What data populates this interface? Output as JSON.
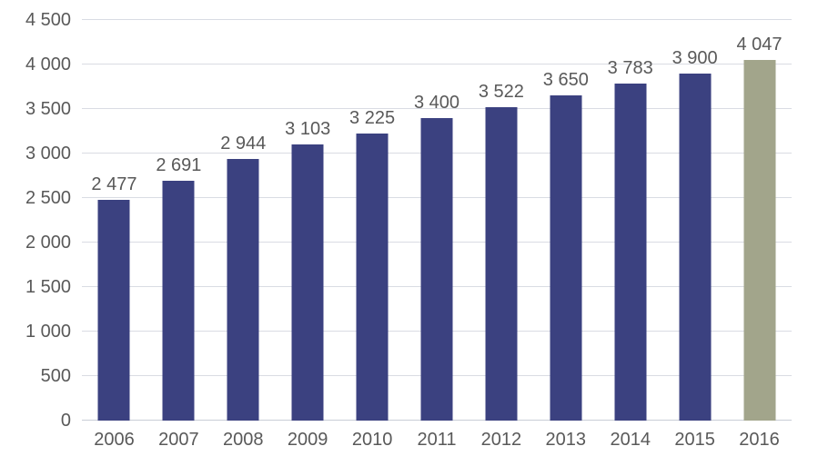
{
  "chart_data": {
    "type": "bar",
    "title": "",
    "xlabel": "",
    "ylabel": "",
    "categories": [
      "2006",
      "2007",
      "2008",
      "2009",
      "2010",
      "2011",
      "2012",
      "2013",
      "2014",
      "2015",
      "2016"
    ],
    "values": [
      2477,
      2691,
      2944,
      3103,
      3225,
      3400,
      3522,
      3650,
      3783,
      3900,
      4047
    ],
    "value_labels": [
      "2 477",
      "2 691",
      "2 944",
      "3 103",
      "3 225",
      "3 400",
      "3 522",
      "3 650",
      "3 783",
      "3 900",
      "4 047"
    ],
    "ylim": [
      0,
      4500
    ],
    "ytick_step": 500,
    "ytick_values": [
      0,
      500,
      1000,
      1500,
      2000,
      2500,
      3000,
      3500,
      4000,
      4500
    ],
    "ytick_labels": [
      "0",
      "500",
      "1 000",
      "1 500",
      "2 000",
      "2 500",
      "3 000",
      "3 500",
      "4 000",
      "4 500"
    ],
    "grid": true,
    "legend": false,
    "colors": {
      "bar": "#3B4180",
      "highlight_bar": "#A2A58B",
      "highlight_index": 10,
      "text": "#595959",
      "gridline": "#D9DCE3",
      "axis_line": "#C9CDD6",
      "background": "#FFFFFF"
    }
  }
}
